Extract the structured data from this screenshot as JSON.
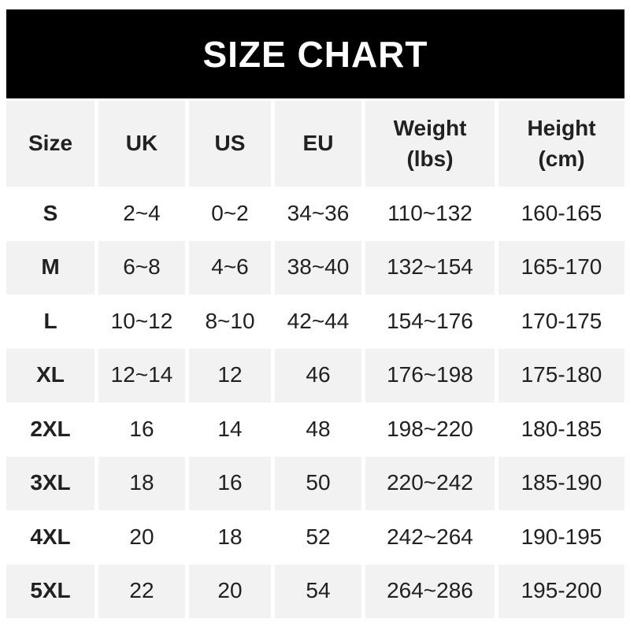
{
  "title": "SIZE CHART",
  "colors": {
    "page_bg": "#ffffff",
    "banner_bg": "#000000",
    "banner_text": "#ffffff",
    "row_alt_bg": "#f2f2f3",
    "row_bg": "#ffffff",
    "text": "#212121"
  },
  "chart_data": {
    "type": "table",
    "title": "SIZE CHART",
    "columns": [
      {
        "label": "Size",
        "sub": ""
      },
      {
        "label": "UK",
        "sub": ""
      },
      {
        "label": "US",
        "sub": ""
      },
      {
        "label": "EU",
        "sub": ""
      },
      {
        "label": "Weight",
        "sub": "(lbs)"
      },
      {
        "label": "Height",
        "sub": "(cm)"
      }
    ],
    "rows": [
      [
        "S",
        "2~4",
        "0~2",
        "34~36",
        "110~132",
        "160-165"
      ],
      [
        "M",
        "6~8",
        "4~6",
        "38~40",
        "132~154",
        "165-170"
      ],
      [
        "L",
        "10~12",
        "8~10",
        "42~44",
        "154~176",
        "170-175"
      ],
      [
        "XL",
        "12~14",
        "12",
        "46",
        "176~198",
        "175-180"
      ],
      [
        "2XL",
        "16",
        "14",
        "48",
        "198~220",
        "180-185"
      ],
      [
        "3XL",
        "18",
        "16",
        "50",
        "220~242",
        "185-190"
      ],
      [
        "4XL",
        "20",
        "18",
        "52",
        "242~264",
        "190-195"
      ],
      [
        "5XL",
        "22",
        "20",
        "54",
        "264~286",
        "195-200"
      ]
    ]
  }
}
